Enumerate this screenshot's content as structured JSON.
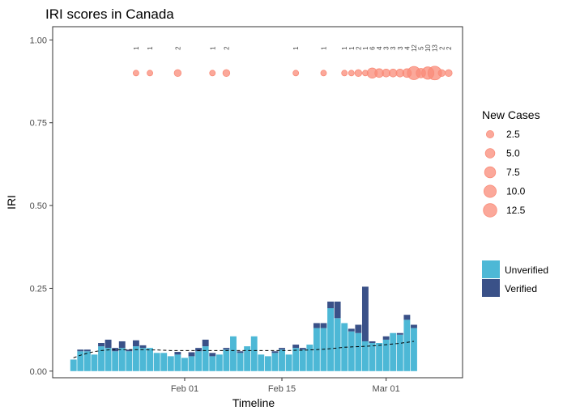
{
  "chart_data": {
    "type": "bar",
    "title": "IRI scores in Canada",
    "xlabel": "Timeline",
    "ylabel": "IRI",
    "ylim": [
      -0.02,
      1.04
    ],
    "y_ticks": [
      0.0,
      0.25,
      0.5,
      0.75,
      1.0
    ],
    "y_tick_labels": [
      "0.00",
      "0.25",
      "0.50",
      "0.75",
      "1.00"
    ],
    "x_ticks": [
      {
        "day": 16,
        "label": "Feb 01"
      },
      {
        "day": 30,
        "label": "Feb 15"
      },
      {
        "day": 45,
        "label": "Mar 01"
      }
    ],
    "day_range": [
      -3,
      56
    ],
    "grid": false,
    "colors": {
      "unverified": "#4DB8D6",
      "verified": "#3A5188",
      "cases": "#F98B78",
      "trend": "#000000",
      "panel_border": "#333333"
    },
    "series": [
      {
        "name": "Unverified",
        "values": [
          0.035,
          0.06,
          0.06,
          0.05,
          0.075,
          0.07,
          0.06,
          0.07,
          0.06,
          0.075,
          0.07,
          0.07,
          0.055,
          0.055,
          0.045,
          0.05,
          0.04,
          0.045,
          0.06,
          0.075,
          0.045,
          0.05,
          0.065,
          0.105,
          0.055,
          0.075,
          0.105,
          0.05,
          0.045,
          0.055,
          0.065,
          0.05,
          0.07,
          0.065,
          0.08,
          0.13,
          0.13,
          0.19,
          0.16,
          0.145,
          0.12,
          0.115,
          0.09,
          0.085,
          0.085,
          0.095,
          0.115,
          0.11,
          0.155,
          0.13
        ]
      },
      {
        "name": "Verified",
        "values": [
          0.0,
          0.005,
          0.005,
          0.0,
          0.01,
          0.025,
          0.01,
          0.02,
          0.005,
          0.018,
          0.008,
          0.0,
          0.0,
          0.0,
          0.0,
          0.008,
          0.0,
          0.012,
          0.01,
          0.02,
          0.01,
          0.0,
          0.005,
          0.0,
          0.005,
          0.0,
          0.0,
          0.0,
          0.0,
          0.005,
          0.005,
          0.0,
          0.01,
          0.005,
          0.0,
          0.015,
          0.015,
          0.02,
          0.05,
          0.0,
          0.008,
          0.025,
          0.165,
          0.005,
          0.0,
          0.01,
          0.0,
          0.005,
          0.015,
          0.01
        ]
      }
    ],
    "trend_line": [
      0.04,
      0.048,
      0.054,
      0.059,
      0.062,
      0.064,
      0.065,
      0.065,
      0.065,
      0.065,
      0.065,
      0.064,
      0.064,
      0.063,
      0.062,
      0.062,
      0.062,
      0.062,
      0.062,
      0.062,
      0.062,
      0.062,
      0.062,
      0.062,
      0.062,
      0.062,
      0.062,
      0.062,
      0.062,
      0.062,
      0.062,
      0.062,
      0.063,
      0.063,
      0.064,
      0.065,
      0.066,
      0.068,
      0.07,
      0.072,
      0.073,
      0.074,
      0.075,
      0.076,
      0.078,
      0.08,
      0.082,
      0.084,
      0.087,
      0.09
    ],
    "new_cases": {
      "y": 0.9,
      "days": [
        9,
        11,
        15,
        20,
        22,
        32,
        36,
        39,
        40,
        41,
        42,
        43,
        44,
        45,
        46,
        47,
        48,
        49,
        50,
        51,
        52,
        53,
        54
      ],
      "counts": [
        1,
        1,
        2,
        1,
        2,
        1,
        1,
        1,
        1,
        2,
        1,
        6,
        4,
        3,
        3,
        3,
        4,
        12,
        5,
        10,
        13,
        2,
        2
      ]
    },
    "size_legend": {
      "title": "New Cases",
      "values": [
        2.5,
        5.0,
        7.5,
        10.0,
        12.5
      ],
      "labels": [
        "2.5",
        "5.0",
        "7.5",
        "10.0",
        "12.5"
      ]
    },
    "fill_legend": [
      "Unverified",
      "Verified"
    ]
  }
}
